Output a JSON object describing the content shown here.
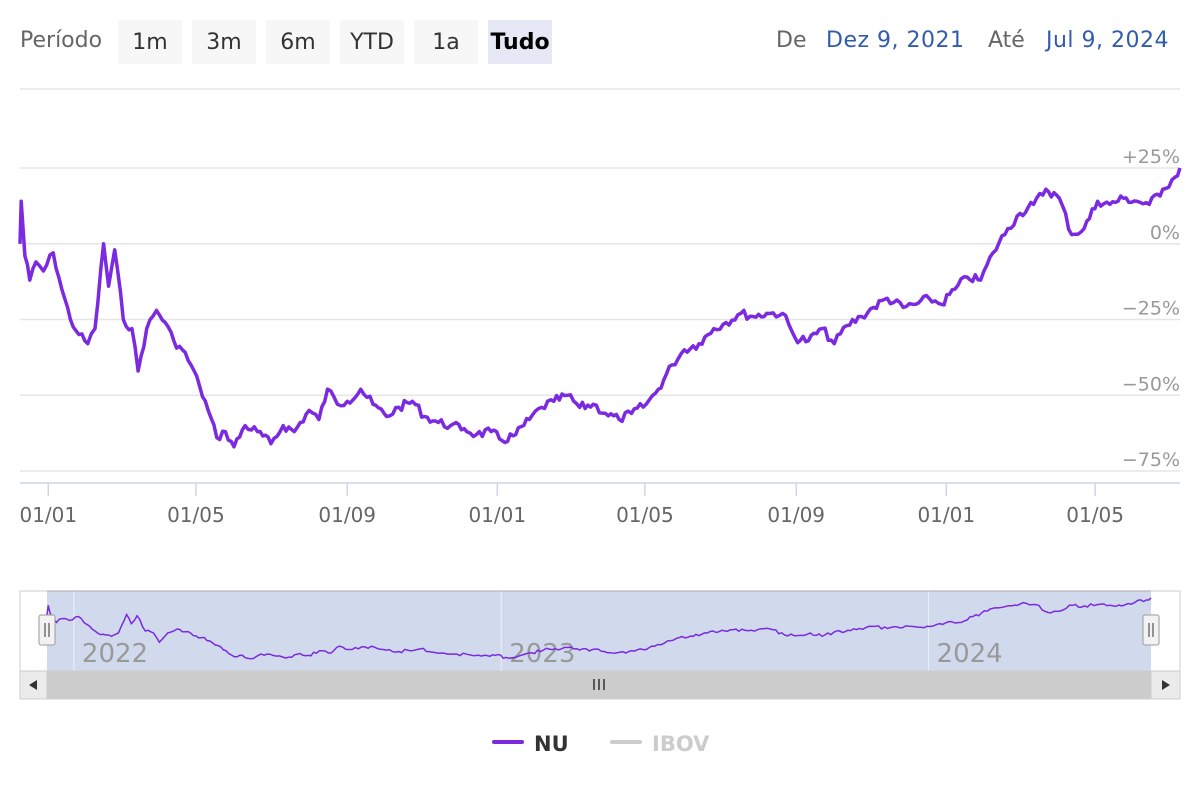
{
  "range_selector": {
    "label": "Período",
    "buttons": [
      {
        "label": "1m"
      },
      {
        "label": "3m"
      },
      {
        "label": "6m"
      },
      {
        "label": "YTD"
      },
      {
        "label": "1a"
      },
      {
        "label": "Tudo",
        "active": true
      }
    ],
    "from_label": "De",
    "from_value": "Dez 9, 2021",
    "to_label": "Até",
    "to_value": "Jul 9, 2024"
  },
  "legend": {
    "items": [
      {
        "name": "NU",
        "color": "#7b2ae0",
        "visible": true
      },
      {
        "name": "IBOV",
        "color": "#cccccc",
        "visible": false
      }
    ]
  },
  "navigator": {
    "year_labels": [
      "2022",
      "2023",
      "2024"
    ]
  },
  "chart_data": {
    "type": "line",
    "y_axis": {
      "ticks": [
        "+25%",
        "0%",
        "−25%",
        "−50%",
        "−75%"
      ],
      "tick_values": [
        25,
        0,
        -25,
        -50,
        -75
      ],
      "range": [
        -75,
        25
      ]
    },
    "x_axis": {
      "tick_labels": [
        "01/01",
        "01/05",
        "01/09",
        "01/01",
        "01/05",
        "01/09",
        "01/01",
        "01/05"
      ],
      "tick_dates": [
        "2022-01-01",
        "2022-05-01",
        "2022-09-01",
        "2023-01-01",
        "2023-05-01",
        "2023-09-01",
        "2024-01-01",
        "2024-05-01"
      ],
      "range": [
        "2021-12-09",
        "2024-07-09"
      ]
    },
    "series": [
      {
        "name": "NU",
        "color": "#7b2ae0",
        "points": [
          [
            "2021-12-09",
            0
          ],
          [
            "2021-12-10",
            14
          ],
          [
            "2021-12-13",
            -4
          ],
          [
            "2021-12-17",
            -12
          ],
          [
            "2021-12-22",
            -6
          ],
          [
            "2021-12-28",
            -9
          ],
          [
            "2022-01-05",
            -3
          ],
          [
            "2022-01-12",
            -15
          ],
          [
            "2022-01-19",
            -25
          ],
          [
            "2022-01-26",
            -30
          ],
          [
            "2022-02-02",
            -33
          ],
          [
            "2022-02-08",
            -28
          ],
          [
            "2022-02-15",
            0
          ],
          [
            "2022-02-19",
            -14
          ],
          [
            "2022-02-24",
            -2
          ],
          [
            "2022-03-03",
            -25
          ],
          [
            "2022-03-10",
            -28
          ],
          [
            "2022-03-15",
            -42
          ],
          [
            "2022-03-22",
            -28
          ],
          [
            "2022-03-30",
            -22
          ],
          [
            "2022-04-06",
            -26
          ],
          [
            "2022-04-13",
            -32
          ],
          [
            "2022-04-20",
            -35
          ],
          [
            "2022-04-27",
            -40
          ],
          [
            "2022-05-04",
            -47
          ],
          [
            "2022-05-11",
            -55
          ],
          [
            "2022-05-18",
            -64
          ],
          [
            "2022-05-25",
            -62
          ],
          [
            "2022-06-01",
            -67
          ],
          [
            "2022-06-10",
            -60
          ],
          [
            "2022-06-20",
            -62
          ],
          [
            "2022-07-01",
            -66
          ],
          [
            "2022-07-11",
            -60
          ],
          [
            "2022-07-20",
            -62
          ],
          [
            "2022-08-01",
            -55
          ],
          [
            "2022-08-09",
            -58
          ],
          [
            "2022-08-16",
            -48
          ],
          [
            "2022-08-24",
            -53
          ],
          [
            "2022-09-01",
            -52
          ],
          [
            "2022-09-12",
            -48
          ],
          [
            "2022-09-22",
            -53
          ],
          [
            "2022-10-03",
            -57
          ],
          [
            "2022-10-13",
            -54
          ],
          [
            "2022-10-24",
            -52
          ],
          [
            "2022-11-03",
            -57
          ],
          [
            "2022-11-14",
            -59
          ],
          [
            "2022-11-24",
            -60
          ],
          [
            "2022-12-05",
            -61
          ],
          [
            "2022-12-15",
            -63
          ],
          [
            "2022-12-27",
            -62
          ],
          [
            "2023-01-05",
            -65
          ],
          [
            "2023-01-16",
            -63
          ],
          [
            "2023-01-27",
            -58
          ],
          [
            "2023-02-06",
            -54
          ],
          [
            "2023-02-16",
            -52
          ],
          [
            "2023-02-27",
            -50
          ],
          [
            "2023-03-09",
            -54
          ],
          [
            "2023-03-20",
            -53
          ],
          [
            "2023-03-30",
            -56
          ],
          [
            "2023-04-10",
            -58
          ],
          [
            "2023-04-20",
            -56
          ],
          [
            "2023-05-02",
            -53
          ],
          [
            "2023-05-12",
            -48
          ],
          [
            "2023-05-23",
            -40
          ],
          [
            "2023-06-02",
            -35
          ],
          [
            "2023-06-14",
            -33
          ],
          [
            "2023-06-26",
            -28
          ],
          [
            "2023-07-06",
            -26
          ],
          [
            "2023-07-18",
            -23
          ],
          [
            "2023-07-28",
            -24
          ],
          [
            "2023-08-08",
            -23
          ],
          [
            "2023-08-21",
            -23
          ],
          [
            "2023-08-31",
            -31
          ],
          [
            "2023-09-11",
            -32
          ],
          [
            "2023-09-22",
            -28
          ],
          [
            "2023-10-02",
            -33
          ],
          [
            "2023-10-12",
            -27
          ],
          [
            "2023-10-24",
            -24
          ],
          [
            "2023-11-03",
            -21
          ],
          [
            "2023-11-14",
            -18
          ],
          [
            "2023-11-27",
            -21
          ],
          [
            "2023-12-07",
            -20
          ],
          [
            "2023-12-18",
            -18
          ],
          [
            "2023-12-28",
            -20
          ],
          [
            "2024-01-08",
            -15
          ],
          [
            "2024-01-18",
            -11
          ],
          [
            "2024-01-29",
            -12
          ],
          [
            "2024-02-08",
            -3
          ],
          [
            "2024-02-20",
            5
          ],
          [
            "2024-03-01",
            10
          ],
          [
            "2024-03-12",
            13
          ],
          [
            "2024-03-22",
            18
          ],
          [
            "2024-04-02",
            15
          ],
          [
            "2024-04-12",
            3
          ],
          [
            "2024-04-22",
            5
          ],
          [
            "2024-05-03",
            14
          ],
          [
            "2024-05-13",
            13
          ],
          [
            "2024-05-24",
            15
          ],
          [
            "2024-06-04",
            14
          ],
          [
            "2024-06-14",
            13
          ],
          [
            "2024-06-25",
            18
          ],
          [
            "2024-07-05",
            22
          ],
          [
            "2024-07-09",
            25
          ]
        ]
      }
    ]
  }
}
